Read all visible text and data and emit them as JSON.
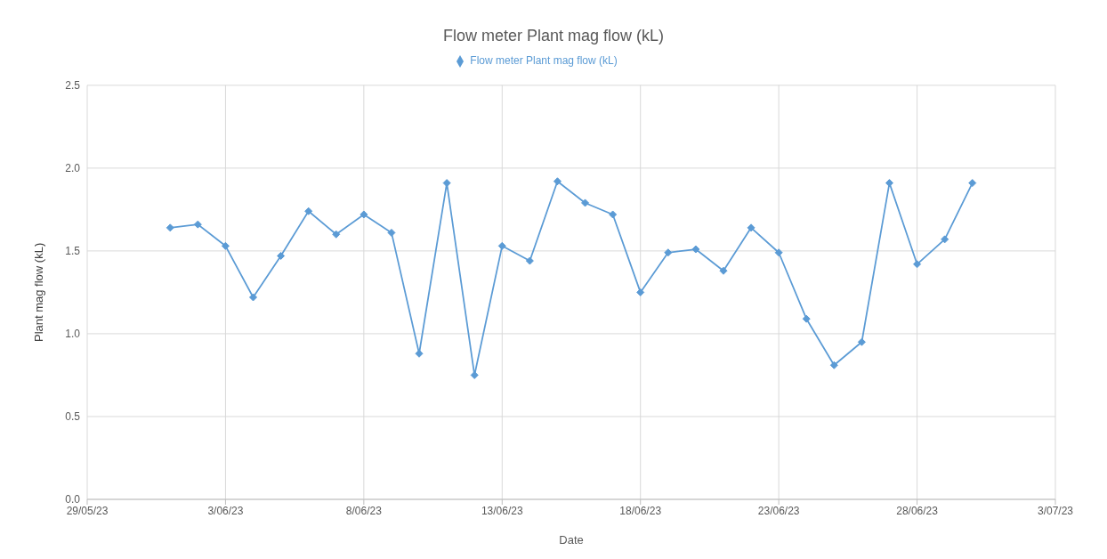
{
  "chart_data": {
    "type": "line",
    "title": "Flow meter Plant mag flow (kL)",
    "xlabel": "Date",
    "ylabel": "Plant mag flow (kL)",
    "x": [
      "--06-01",
      "--06-02",
      "--06-03",
      "--06-04",
      "--06-05",
      "--06-06",
      "--06-07",
      "--06-08",
      "--06-09",
      "--06-10",
      "--06-11",
      "--06-12",
      "--06-13",
      "--06-14",
      "--06-15",
      "--06-16",
      "--06-17",
      "--06-18",
      "--06-19",
      "--06-20",
      "--06-21",
      "--06-22",
      "--06-23",
      "--06-24",
      "--06-25",
      "--06-26",
      "--06-27",
      "--06-28",
      "--06-29",
      "--06-30"
    ],
    "series": [
      {
        "name": "Flow meter Plant mag flow (kL)",
        "color": "#5b9bd5",
        "values": [
          1.64,
          1.66,
          1.53,
          1.22,
          1.47,
          1.74,
          1.6,
          1.72,
          1.61,
          0.88,
          1.91,
          0.75,
          1.53,
          1.44,
          1.92,
          1.79,
          1.72,
          1.25,
          1.49,
          1.51,
          1.38,
          1.64,
          1.49,
          1.09,
          0.81,
          0.95,
          1.91,
          1.42,
          1.57,
          1.91
        ]
      }
    ],
    "xlim": [
      "--05-29",
      "--07-03"
    ],
    "xticks": [
      {
        "value": "--05-29",
        "label": "29/05/23"
      },
      {
        "value": "--06-03",
        "label": "3/06/23"
      },
      {
        "value": "--06-08",
        "label": "8/06/23"
      },
      {
        "value": "--06-13",
        "label": "13/06/23"
      },
      {
        "value": "--06-18",
        "label": "18/06/23"
      },
      {
        "value": "--06-23",
        "label": "23/06/23"
      },
      {
        "value": "--06-28",
        "label": "28/06/23"
      },
      {
        "value": "--07-03",
        "label": "3/07/23"
      }
    ],
    "ylim": [
      0,
      2.5
    ],
    "yticks": [
      {
        "value": 0,
        "label": "0.0"
      },
      {
        "value": 0.5,
        "label": "0.5"
      },
      {
        "value": 1,
        "label": "1.0"
      },
      {
        "value": 1.5,
        "label": "1.5"
      },
      {
        "value": 2,
        "label": "2.0"
      },
      {
        "value": 2.5,
        "label": "2.5"
      }
    ],
    "grid": true,
    "legend": "top",
    "marker": "diamond",
    "line_style": "solid"
  }
}
